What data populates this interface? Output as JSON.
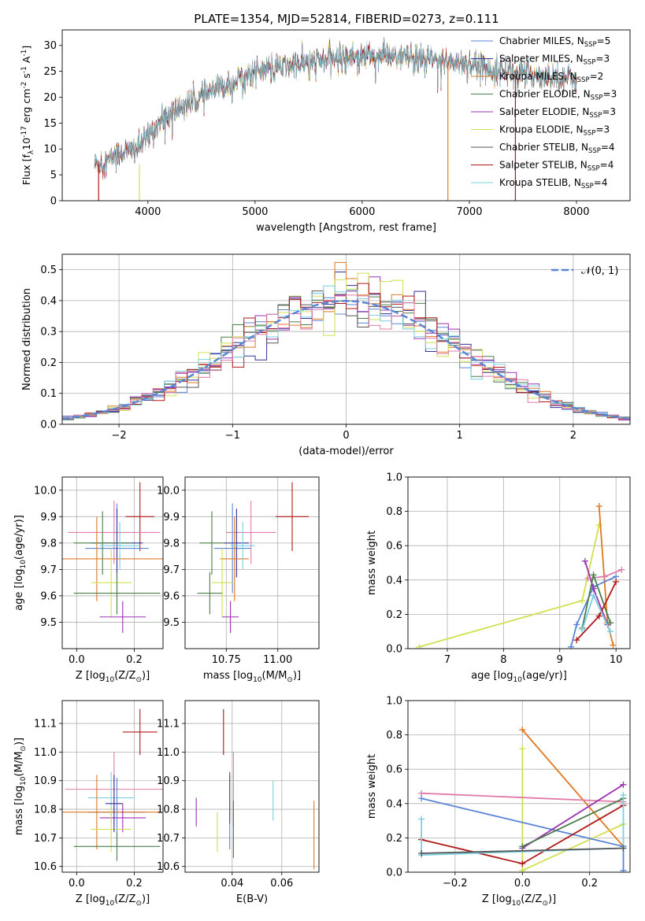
{
  "figure_title": "PLATE=1354, MJD=52814, FIBERID=0273, z=0.111",
  "colors": {
    "chabrier_miles": "#5b86d6",
    "salpeter_miles": "#333399",
    "kroupa_miles": "#e07820",
    "chabrier_elodie": "#4c7c4c",
    "salpeter_elodie": "#9b30b0",
    "kroupa_elodie": "#d2e050",
    "chabrier_stelib": "#555555",
    "salpeter_stelib": "#b01818",
    "kroupa_stelib": "#7ad0e0",
    "pink": "#e07aa8",
    "gaussian": "#5b86d6",
    "grid": "#b0b0b0"
  },
  "chart_data": [
    {
      "id": "spectrum",
      "type": "line",
      "xlabel": "wavelength [Angstrom, rest frame]",
      "ylabel": "Flux [f",
      "ylabel_sub": "λ",
      "ylabel_rest": "10",
      "ylabel_exp": "-17",
      "ylabel_units": " erg cm",
      "ylabel_units_exp": "-2",
      "ylabel_s": " s",
      "ylabel_s_exp": "-1",
      "ylabel_a": " A",
      "ylabel_a_exp": "-1",
      "ylabel_end": "]",
      "xlim": [
        3200,
        8500
      ],
      "ylim": [
        0,
        33
      ],
      "xticks": [
        4000,
        5000,
        6000,
        7000,
        8000
      ],
      "yticks": [
        0,
        5,
        10,
        15,
        20,
        25,
        30
      ],
      "grid": false,
      "legend_position": "right",
      "x_range": [
        3500,
        8000
      ],
      "continuum_x": [
        3500,
        3650,
        3700,
        3900,
        3950,
        4100,
        4300,
        4500,
        4700,
        5000,
        5300,
        5600,
        5900,
        6200,
        6500,
        6800,
        7000,
        7200,
        7500,
        7800,
        8000
      ],
      "continuum_y": [
        7,
        8,
        9,
        10,
        11,
        15,
        18,
        20,
        22,
        25,
        26,
        27,
        28,
        28,
        27.5,
        27,
        26.5,
        25.5,
        24.5,
        24,
        23.5
      ],
      "series": [
        {
          "label": "Chabrier MILES, N",
          "sub": "SSP",
          "count": "=5",
          "color": "#5b86d6"
        },
        {
          "label": "Salpeter MILES, N",
          "sub": "SSP",
          "count": "=3",
          "color": "#333399"
        },
        {
          "label": "Kroupa MILES, N",
          "sub": "SSP",
          "count": "=2",
          "color": "#e07820"
        },
        {
          "label": "Chabrier ELODIE, N",
          "sub": "SSP",
          "count": "=3",
          "color": "#4c7c4c"
        },
        {
          "label": "Salpeter ELODIE, N",
          "sub": "SSP",
          "count": "=3",
          "color": "#9b30b0"
        },
        {
          "label": "Kroupa ELODIE, N",
          "sub": "SSP",
          "count": "=3",
          "color": "#d2e050"
        },
        {
          "label": "Chabrier STELIB, N",
          "sub": "SSP",
          "count": "=4",
          "color": "#555555"
        },
        {
          "label": "Salpeter STELIB, N",
          "sub": "SSP",
          "count": "=4",
          "color": "#b01818"
        },
        {
          "label": "Kroupa STELIB, N",
          "sub": "SSP",
          "count": "=4",
          "color": "#7ad0e0"
        }
      ],
      "spikes": [
        {
          "x": 3540,
          "y0": 0,
          "y1": 7,
          "color": "#b01818"
        },
        {
          "x": 3920,
          "y0": 0,
          "y1": 7,
          "color": "#d2e050"
        },
        {
          "x": 6800,
          "y0": 0,
          "y1": 27,
          "color": "#e07820"
        },
        {
          "x": 7430,
          "y0": 0,
          "y1": 24,
          "color": "#b01818"
        }
      ]
    },
    {
      "id": "residuals",
      "type": "histogram",
      "xlabel": "(data-model)/error",
      "ylabel": "Normed distribution",
      "xlim": [
        -2.5,
        2.5
      ],
      "ylim": [
        0,
        0.55
      ],
      "xticks": [
        -2,
        -1,
        0,
        1,
        2
      ],
      "xticklabels": [
        "−2",
        "−1",
        "0",
        "1",
        "2"
      ],
      "yticks": [
        0.0,
        0.1,
        0.2,
        0.3,
        0.4,
        0.5
      ],
      "grid": true,
      "legend": {
        "label": "𝒩(0, 1)",
        "position": "top-right"
      },
      "bin_width": 0.1
    },
    {
      "id": "z_age",
      "type": "errorbar",
      "xlabel": "Z [log",
      "xlabel_sub": "10",
      "xlabel_rest": "(Z/Z",
      "xlabel_sub2": "⊙",
      "xlabel_end": ")]",
      "ylabel": "age  [log",
      "ylabel_sub": "10",
      "ylabel_rest": "(age/yr)]",
      "xlim": [
        -0.05,
        0.3
      ],
      "ylim": [
        9.4,
        10.05
      ],
      "xticks": [
        0.0,
        0.2
      ],
      "yticks": [
        9.5,
        9.6,
        9.7,
        9.8,
        9.9,
        10.0
      ],
      "grid": true,
      "points": [
        {
          "x": 0.22,
          "xerr": 0.05,
          "y": 9.9,
          "yerr": 0.13,
          "color": "#b01818"
        },
        {
          "x": 0.13,
          "xerr": 0.16,
          "y": 9.84,
          "yerr": 0.12,
          "color": "#e07aa8"
        },
        {
          "x": 0.14,
          "xerr": 0.11,
          "y": 9.78,
          "yerr": 0.17,
          "color": "#5b86d6"
        },
        {
          "x": 0.14,
          "xerr": 0.09,
          "y": 9.8,
          "yerr": 0.13,
          "color": "#333399"
        },
        {
          "x": 0.09,
          "xerr": 0.1,
          "y": 9.8,
          "yerr": 0.12,
          "color": "#4c7c4c"
        },
        {
          "x": 0.07,
          "xerr": 0.23,
          "y": 9.74,
          "yerr": 0.16,
          "color": "#e07820"
        },
        {
          "x": 0.12,
          "xerr": 0.07,
          "y": 9.65,
          "yerr": 0.13,
          "color": "#d2e050"
        },
        {
          "x": 0.14,
          "xerr": 0.15,
          "y": 9.61,
          "yerr": 0.08,
          "color": "#4c7c4c"
        },
        {
          "x": 0.16,
          "xerr": 0.08,
          "y": 9.52,
          "yerr": 0.06,
          "color": "#9b30b0"
        },
        {
          "x": 0.15,
          "xerr": 0.07,
          "y": 9.79,
          "yerr": 0.09,
          "color": "#7ad0e0"
        }
      ]
    },
    {
      "id": "mass_age",
      "type": "errorbar",
      "xlabel": "mass [log",
      "xlabel_sub": "10",
      "xlabel_rest": "(M/M",
      "xlabel_sub2": "⊙",
      "xlabel_end": ")]",
      "xlim": [
        10.55,
        11.2
      ],
      "ylim": [
        9.4,
        10.05
      ],
      "xticks": [
        10.75,
        11.0
      ],
      "xticklabels": [
        "10.75",
        "11.00"
      ],
      "yticks": [
        9.5,
        9.6,
        9.7,
        9.8,
        9.9,
        10.0
      ],
      "grid": true,
      "points": [
        {
          "x": 11.07,
          "xerr": 0.08,
          "y": 9.9,
          "yerr": 0.13,
          "color": "#b01818"
        },
        {
          "x": 10.87,
          "xerr": 0.12,
          "y": 9.84,
          "yerr": 0.12,
          "color": "#e07aa8"
        },
        {
          "x": 10.78,
          "xerr": 0.09,
          "y": 9.78,
          "yerr": 0.17,
          "color": "#5b86d6"
        },
        {
          "x": 10.8,
          "xerr": 0.06,
          "y": 9.8,
          "yerr": 0.13,
          "color": "#333399"
        },
        {
          "x": 10.68,
          "xerr": 0.06,
          "y": 9.8,
          "yerr": 0.12,
          "color": "#4c7c4c"
        },
        {
          "x": 10.79,
          "xerr": 0.07,
          "y": 9.74,
          "yerr": 0.16,
          "color": "#e07820"
        },
        {
          "x": 10.73,
          "xerr": 0.05,
          "y": 9.65,
          "yerr": 0.13,
          "color": "#d2e050"
        },
        {
          "x": 10.67,
          "xerr": 0.06,
          "y": 9.61,
          "yerr": 0.08,
          "color": "#4c7c4c"
        },
        {
          "x": 10.77,
          "xerr": 0.04,
          "y": 9.52,
          "yerr": 0.06,
          "color": "#9b30b0"
        },
        {
          "x": 10.83,
          "xerr": 0.06,
          "y": 9.79,
          "yerr": 0.09,
          "color": "#7ad0e0"
        }
      ]
    },
    {
      "id": "age_weight",
      "type": "line",
      "xlabel": "age  [log",
      "xlabel_sub": "10",
      "xlabel_rest": "(age/yr)]",
      "ylabel": "mass weight",
      "xlim": [
        6.3,
        10.25
      ],
      "ylim": [
        0,
        1.0
      ],
      "xticks": [
        7,
        8,
        9,
        10
      ],
      "yticks": [
        0.0,
        0.2,
        0.4,
        0.6,
        0.8,
        1.0
      ],
      "grid": true,
      "series": [
        {
          "color": "#d2e050",
          "x": [
            6.5,
            9.4,
            9.7
          ],
          "y": [
            0.01,
            0.28,
            0.72
          ]
        },
        {
          "color": "#e07820",
          "x": [
            9.7,
            9.85,
            9.95
          ],
          "y": [
            0.83,
            0.15,
            0.02
          ]
        },
        {
          "color": "#5b86d6",
          "x": [
            9.2,
            9.3,
            9.6,
            10.0
          ],
          "y": [
            0.01,
            0.14,
            0.36,
            0.42
          ]
        },
        {
          "color": "#9b30b0",
          "x": [
            9.45,
            9.6,
            9.85
          ],
          "y": [
            0.51,
            0.35,
            0.14
          ]
        },
        {
          "color": "#e07aa8",
          "x": [
            9.5,
            9.8,
            10.1
          ],
          "y": [
            0.41,
            0.42,
            0.46
          ]
        },
        {
          "color": "#4c7c4c",
          "x": [
            9.4,
            9.6,
            9.9
          ],
          "y": [
            0.12,
            0.43,
            0.15
          ]
        },
        {
          "color": "#b01818",
          "x": [
            9.3,
            9.7,
            10.0
          ],
          "y": [
            0.05,
            0.19,
            0.39
          ]
        },
        {
          "color": "#7ad0e0",
          "x": [
            9.4,
            9.6,
            9.9
          ],
          "y": [
            0.11,
            0.31,
            0.1
          ]
        }
      ]
    },
    {
      "id": "z_mass",
      "type": "errorbar",
      "xlabel": "Z [log",
      "xlabel_sub": "10",
      "xlabel_rest": "(Z/Z",
      "xlabel_sub2": "⊙",
      "xlabel_end": ")]",
      "ylabel": "mass [log",
      "ylabel_sub": "10",
      "ylabel_rest": "(M/M",
      "ylabel_sub2": "⊙",
      "ylabel_end": ")]",
      "xlim": [
        -0.05,
        0.3
      ],
      "ylim": [
        10.58,
        11.18
      ],
      "xticks": [
        0.0,
        0.2
      ],
      "yticks": [
        10.6,
        10.7,
        10.8,
        10.9,
        11.0,
        11.1
      ],
      "grid": true,
      "points": [
        {
          "x": 0.22,
          "xerr": 0.06,
          "y": 11.07,
          "yerr": 0.08,
          "color": "#b01818"
        },
        {
          "x": 0.13,
          "xerr": 0.17,
          "y": 10.87,
          "yerr": 0.13,
          "color": "#e07aa8"
        },
        {
          "x": 0.12,
          "xerr": 0.08,
          "y": 10.84,
          "yerr": 0.09,
          "color": "#7ad0e0"
        },
        {
          "x": 0.14,
          "xerr": 0.1,
          "y": 10.79,
          "yerr": 0.12,
          "color": "#5b86d6"
        },
        {
          "x": 0.07,
          "xerr": 0.23,
          "y": 10.79,
          "yerr": 0.13,
          "color": "#e07820"
        },
        {
          "x": 0.16,
          "xerr": 0.08,
          "y": 10.77,
          "yerr": 0.05,
          "color": "#9b30b0"
        },
        {
          "x": 0.12,
          "xerr": 0.07,
          "y": 10.73,
          "yerr": 0.08,
          "color": "#d2e050"
        },
        {
          "x": 0.14,
          "xerr": 0.15,
          "y": 10.67,
          "yerr": 0.05,
          "color": "#4c7c4c"
        },
        {
          "x": 0.13,
          "xerr": 0.03,
          "y": 10.82,
          "yerr": 0.1,
          "color": "#333399"
        }
      ]
    },
    {
      "id": "ebv_mass",
      "type": "errorbar",
      "xlabel": "E(B-V)",
      "xlim": [
        0.021,
        0.075
      ],
      "ylim": [
        10.58,
        11.18
      ],
      "xticks": [
        0.04,
        0.06
      ],
      "xticklabels": [
        "0.04",
        "0.06"
      ],
      "yticks": [
        10.6,
        10.7,
        10.8,
        10.9,
        11.0,
        11.1
      ],
      "grid": true,
      "points": [
        {
          "x": 0.0365,
          "xerr": 0,
          "y": 11.07,
          "yerr": 0.08,
          "color": "#b01818"
        },
        {
          "x": 0.0405,
          "xerr": 0,
          "y": 10.87,
          "yerr": 0.13,
          "color": "#e07aa8"
        },
        {
          "x": 0.0565,
          "xerr": 0,
          "y": 10.83,
          "yerr": 0.07,
          "color": "#7ad0e0"
        },
        {
          "x": 0.039,
          "xerr": 0,
          "y": 10.79,
          "yerr": 0.13,
          "color": "#5b86d6"
        },
        {
          "x": 0.073,
          "xerr": 0,
          "y": 10.71,
          "yerr": 0.12,
          "color": "#e07820"
        },
        {
          "x": 0.0255,
          "xerr": 0,
          "y": 10.79,
          "yerr": 0.05,
          "color": "#9b30b0"
        },
        {
          "x": 0.034,
          "xerr": 0,
          "y": 10.72,
          "yerr": 0.07,
          "color": "#d2e050"
        },
        {
          "x": 0.0405,
          "xerr": 0,
          "y": 10.73,
          "yerr": 0.1,
          "color": "#4c7c4c"
        },
        {
          "x": 0.039,
          "xerr": 0,
          "y": 10.84,
          "yerr": 0.09,
          "color": "#555555"
        }
      ]
    },
    {
      "id": "z_weight",
      "type": "line",
      "xlabel": "Z [log",
      "xlabel_sub": "10",
      "xlabel_rest": "(Z/Z",
      "xlabel_sub2": "⊙",
      "xlabel_end": ")]",
      "ylabel": "mass weight",
      "xlim": [
        -0.34,
        0.32
      ],
      "ylim": [
        0,
        1.0
      ],
      "xticks": [
        -0.2,
        0.0,
        0.2
      ],
      "xticklabels": [
        "−0.2",
        "0.0",
        "0.2"
      ],
      "yticks": [
        0.0,
        0.2,
        0.4,
        0.6,
        0.8,
        1.0
      ],
      "grid": true,
      "series": [
        {
          "color": "#e07820",
          "x": [
            0.0,
            0.3
          ],
          "y": [
            0.83,
            0.15
          ]
        },
        {
          "color": "#d2e050",
          "x": [
            0.0,
            0.0,
            0.3
          ],
          "y": [
            0.72,
            0.01,
            0.28
          ]
        },
        {
          "color": "#e07aa8",
          "x": [
            -0.3,
            0.3
          ],
          "y": [
            0.46,
            0.41
          ]
        },
        {
          "color": "#5b86d6",
          "x": [
            -0.3,
            0.3,
            0.3
          ],
          "y": [
            0.43,
            0.15,
            0.01
          ]
        },
        {
          "color": "#9b30b0",
          "x": [
            0.0,
            0.3
          ],
          "y": [
            0.14,
            0.51
          ]
        },
        {
          "color": "#4c7c4c",
          "x": [
            0.0,
            0.3
          ],
          "y": [
            0.15,
            0.43
          ]
        },
        {
          "color": "#b01818",
          "x": [
            -0.3,
            0.0,
            0.3
          ],
          "y": [
            0.19,
            0.05,
            0.39
          ]
        },
        {
          "color": "#7ad0e0",
          "x": [
            -0.3,
            -0.3,
            0.3,
            0.3
          ],
          "y": [
            0.31,
            0.1,
            0.14,
            0.45
          ]
        },
        {
          "color": "#555555",
          "x": [
            -0.3,
            0.3
          ],
          "y": [
            0.11,
            0.14
          ]
        }
      ]
    }
  ]
}
